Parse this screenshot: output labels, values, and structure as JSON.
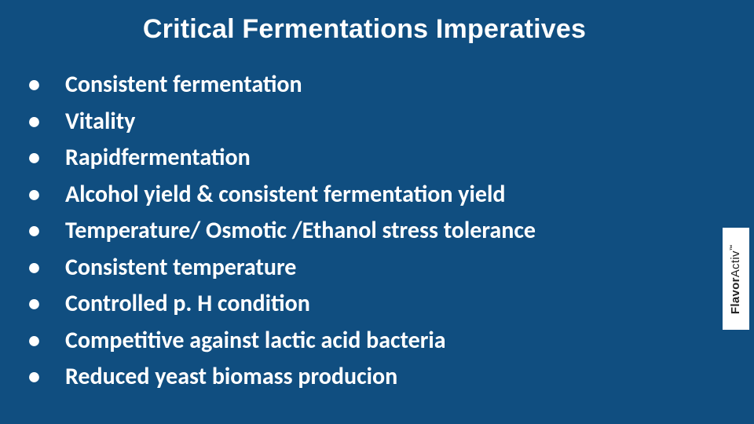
{
  "slide": {
    "background_color": "#104e80",
    "text_color": "#ffffff",
    "title": "Critical Fermentations Imperatives",
    "title_fontsize": 34,
    "title_font": "Arial",
    "title_weight": "bold",
    "bullet_fontsize": 30,
    "bullet_font": "Calibri",
    "bullet_weight": 600,
    "line_height": 1.55,
    "bullets": [
      "Consistent fermentation",
      "Vitality",
      "Rapidfermentation",
      "Alcohol yield & consistent fermentation yield",
      "Temperature/ Osmotic /Ethanol stress tolerance",
      "Consistent temperature",
      "Controlled p. H condition",
      "Competitive against lactic acid bacteria",
      "Reduced yeast biomass producion"
    ]
  },
  "logo": {
    "text_bold": "Flavor",
    "text_light": "Activ",
    "trademark": "™",
    "background_color": "#ffffff",
    "text_color": "#222222",
    "fontsize": 15
  }
}
